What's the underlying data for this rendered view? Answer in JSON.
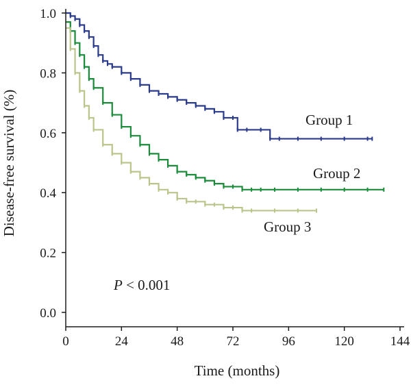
{
  "chart_data": {
    "type": "line",
    "title": "",
    "xlabel": "Time (months)",
    "ylabel": "Disease-free survival (%)",
    "xlim": [
      0,
      144
    ],
    "ylim": [
      0,
      1.0
    ],
    "x_ticks": [
      "0",
      "24",
      "48",
      "72",
      "96",
      "120",
      "144"
    ],
    "y_ticks": [
      "0.0",
      "0.2",
      "0.4",
      "0.6",
      "0.8",
      "1.0"
    ],
    "grid": false,
    "annotation": "P < 0.001",
    "series": [
      {
        "name": "Group 1",
        "color": "#2a3a8c",
        "x": [
          0,
          2,
          4,
          6,
          8,
          10,
          12,
          14,
          16,
          18,
          20,
          24,
          28,
          32,
          36,
          40,
          44,
          48,
          52,
          56,
          60,
          64,
          68,
          72,
          74,
          78,
          84,
          88,
          92,
          100,
          110,
          120,
          130,
          132
        ],
        "y": [
          1.0,
          0.99,
          0.98,
          0.96,
          0.94,
          0.92,
          0.89,
          0.86,
          0.84,
          0.83,
          0.82,
          0.8,
          0.78,
          0.76,
          0.74,
          0.73,
          0.72,
          0.71,
          0.7,
          0.69,
          0.68,
          0.67,
          0.65,
          0.65,
          0.61,
          0.61,
          0.61,
          0.58,
          0.58,
          0.58,
          0.58,
          0.58,
          0.58,
          0.58
        ]
      },
      {
        "name": "Group 2",
        "color": "#1a8c3a",
        "x": [
          0,
          2,
          4,
          6,
          8,
          10,
          12,
          16,
          20,
          24,
          28,
          32,
          36,
          40,
          44,
          48,
          52,
          56,
          60,
          64,
          68,
          72,
          76,
          80,
          84,
          90,
          100,
          110,
          120,
          130,
          137
        ],
        "y": [
          0.97,
          0.94,
          0.9,
          0.86,
          0.82,
          0.78,
          0.75,
          0.7,
          0.66,
          0.62,
          0.59,
          0.56,
          0.53,
          0.51,
          0.49,
          0.47,
          0.46,
          0.45,
          0.44,
          0.43,
          0.42,
          0.42,
          0.41,
          0.41,
          0.41,
          0.41,
          0.41,
          0.41,
          0.41,
          0.41,
          0.41
        ]
      },
      {
        "name": "Group 3",
        "color": "#b9c58a",
        "x": [
          0,
          2,
          4,
          6,
          8,
          10,
          12,
          16,
          20,
          24,
          28,
          32,
          36,
          40,
          44,
          48,
          52,
          56,
          60,
          64,
          68,
          72,
          76,
          80,
          90,
          100,
          108
        ],
        "y": [
          0.95,
          0.88,
          0.8,
          0.74,
          0.69,
          0.65,
          0.61,
          0.56,
          0.53,
          0.5,
          0.47,
          0.45,
          0.43,
          0.41,
          0.4,
          0.38,
          0.37,
          0.37,
          0.36,
          0.36,
          0.35,
          0.35,
          0.34,
          0.34,
          0.34,
          0.34,
          0.34
        ]
      }
    ]
  }
}
